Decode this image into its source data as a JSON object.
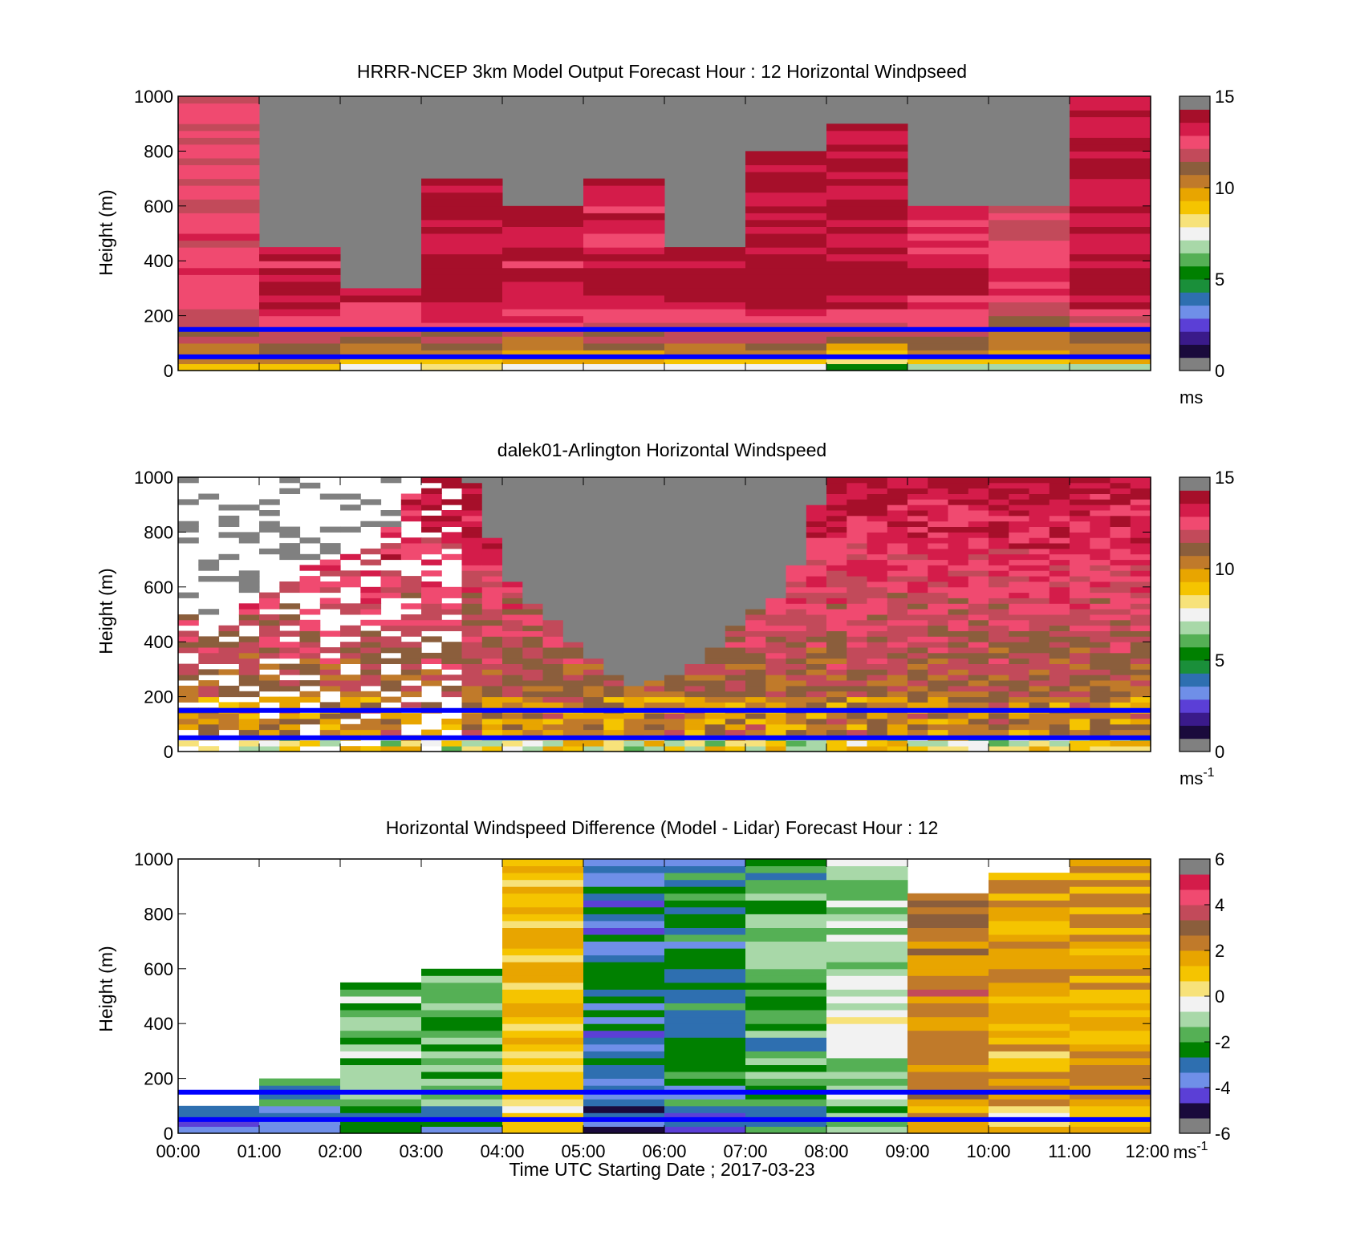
{
  "colors": {
    "missing": "#808080",
    "blank": "#ffffff",
    "boundary_lines": "#0000ff",
    "speed_scale": [
      "#808080",
      "#1a0a3c",
      "#3a1a8a",
      "#5b3fd6",
      "#6f8fe8",
      "#2e6fb0",
      "#1a8f3a",
      "#008000",
      "#55b055",
      "#a8d8a8",
      "#f2f2f2",
      "#f7e27a",
      "#f5c400",
      "#e8a500",
      "#c07a2a",
      "#8b5e3c",
      "#c24a5a",
      "#f04a70",
      "#d41c4a",
      "#a60f2a",
      "#808080"
    ],
    "diff_scale": [
      "#808080",
      "#1a0a3c",
      "#5b3fd6",
      "#6f8fe8",
      "#2e6fb0",
      "#008000",
      "#55b055",
      "#a8d8a8",
      "#f2f2f2",
      "#f7e27a",
      "#f5c400",
      "#e8a500",
      "#c07a2a",
      "#8b5e3c",
      "#c24a5a",
      "#f04a70",
      "#d41c4a",
      "#808080"
    ]
  },
  "chart_data": [
    {
      "type": "heatmap",
      "title": "HRRR-NCEP 3km Model Output   Forecast Hour : 12 Horizontal Windpseed",
      "ylabel": "Height (m)",
      "ylim": [
        0,
        1000
      ],
      "yticks": [
        "0",
        "200",
        "400",
        "600",
        "800",
        "1000"
      ],
      "xlim": [
        0,
        12
      ],
      "x_tick_labels": [],
      "colorbar": {
        "min": 0,
        "max": 15,
        "ticks": [
          "0",
          "5",
          "10",
          "15"
        ],
        "unit": "ms",
        "unit_sup": ""
      },
      "boundary_lines_m": [
        150,
        50
      ],
      "columns": [
        {
          "x0": 0,
          "x1": 1,
          "top": 1000,
          "max_speed": 13.5,
          "surface_speed": 9
        },
        {
          "x0": 1,
          "x1": 2,
          "top": 450,
          "max_speed": 14.5,
          "surface_speed": 9
        },
        {
          "x0": 2,
          "x1": 3,
          "top": 300,
          "max_speed": 14.6,
          "surface_speed": 8
        },
        {
          "x0": 3,
          "x1": 4,
          "top": 700,
          "max_speed": 15,
          "surface_speed": 7.5
        },
        {
          "x0": 4,
          "x1": 5,
          "top": 600,
          "max_speed": 14.6,
          "surface_speed": 7.3
        },
        {
          "x0": 5,
          "x1": 6,
          "top": 700,
          "max_speed": 14.6,
          "surface_speed": 7.3
        },
        {
          "x0": 6,
          "x1": 7,
          "top": 450,
          "max_speed": 14.6,
          "surface_speed": 7.3
        },
        {
          "x0": 7,
          "x1": 8,
          "top": 800,
          "max_speed": 15,
          "surface_speed": 7.3
        },
        {
          "x0": 8,
          "x1": 9,
          "top": 900,
          "max_speed": 15,
          "surface_speed": 5.5
        },
        {
          "x0": 9,
          "x1": 10,
          "top": 600,
          "max_speed": 14.4,
          "surface_speed": 7
        },
        {
          "x0": 10,
          "x1": 11,
          "top": 600,
          "max_speed": 13.5,
          "surface_speed": 7
        },
        {
          "x0": 11,
          "x1": 12,
          "top": 1000,
          "max_speed": 14.8,
          "surface_speed": 7
        }
      ]
    },
    {
      "type": "heatmap",
      "title": "dalek01-Arlington  Horizontal Windspeed",
      "ylabel": "Height (m)",
      "ylim": [
        0,
        1000
      ],
      "yticks": [
        "0",
        "200",
        "400",
        "600",
        "800",
        "1000"
      ],
      "xlim": [
        0,
        12
      ],
      "x_tick_labels": [],
      "colorbar": {
        "min": 0,
        "max": 15,
        "ticks": [
          "0",
          "5",
          "10",
          "15"
        ],
        "unit": "ms",
        "unit_sup": "-1"
      },
      "boundary_lines_m": [
        150,
        50
      ],
      "data_coverage_top_m": [
        {
          "x": 0.0,
          "top": 520
        },
        {
          "x": 0.5,
          "top": 420
        },
        {
          "x": 1.0,
          "top": 580
        },
        {
          "x": 1.5,
          "top": 650
        },
        {
          "x": 2.0,
          "top": 700
        },
        {
          "x": 2.5,
          "top": 750
        },
        {
          "x": 3.0,
          "top": 980
        },
        {
          "x": 3.6,
          "top": 1000
        },
        {
          "x": 4.0,
          "top": 660
        },
        {
          "x": 4.5,
          "top": 500
        },
        {
          "x": 5.0,
          "top": 350
        },
        {
          "x": 5.6,
          "top": 220
        },
        {
          "x": 6.0,
          "top": 260
        },
        {
          "x": 6.5,
          "top": 320
        },
        {
          "x": 7.0,
          "top": 500
        },
        {
          "x": 7.5,
          "top": 560
        },
        {
          "x": 8.0,
          "top": 1000
        },
        {
          "x": 9.0,
          "top": 1000
        },
        {
          "x": 12.0,
          "top": 1000
        }
      ]
    },
    {
      "type": "heatmap",
      "title": "Horizontal Windspeed Difference (Model - Lidar) Forecast Hour : 12",
      "xlabel": "Time UTC  Starting Date ; 2017-03-23",
      "ylabel": "Height (m)",
      "ylim": [
        0,
        1000
      ],
      "yticks": [
        "0",
        "200",
        "400",
        "600",
        "800",
        "1000"
      ],
      "xlim": [
        0,
        12
      ],
      "x_tick_labels": [
        "00:00",
        "01:00",
        "02:00",
        "03:00",
        "04:00",
        "05:00",
        "06:00",
        "07:00",
        "08:00",
        "09:00",
        "10:00",
        "11:00",
        "12:00"
      ],
      "colorbar": {
        "min": -6,
        "max": 6,
        "ticks": [
          "-6",
          "-4",
          "-2",
          "0",
          "2",
          "4",
          "6"
        ],
        "unit": "ms",
        "unit_sup": "-1"
      },
      "boundary_lines_m": [
        150,
        50
      ],
      "columns": [
        {
          "x0": 0,
          "x1": 1,
          "top": 100,
          "mean_diff": -2.8
        },
        {
          "x0": 1,
          "x1": 2,
          "top": 200,
          "mean_diff": -2.6
        },
        {
          "x0": 2,
          "x1": 3,
          "top": 550,
          "mean_diff": -1.6
        },
        {
          "x0": 3,
          "x1": 4,
          "top": 580,
          "mean_diff": -1.9
        },
        {
          "x0": 4,
          "x1": 5,
          "top": 1000,
          "mean_diff": 1.2
        },
        {
          "x0": 5,
          "x1": 6,
          "top": 1000,
          "mean_diff": -3.5
        },
        {
          "x0": 6,
          "x1": 7,
          "top": 1000,
          "mean_diff": -2.9
        },
        {
          "x0": 7,
          "x1": 8,
          "top": 1000,
          "mean_diff": -2.2
        },
        {
          "x0": 8,
          "x1": 9,
          "top": 1000,
          "mean_diff": -1.0
        },
        {
          "x0": 9,
          "x1": 10,
          "top": 870,
          "mean_diff": 2.8
        },
        {
          "x0": 10,
          "x1": 11,
          "top": 930,
          "mean_diff": 1.8
        },
        {
          "x0": 11,
          "x1": 12,
          "top": 1000,
          "mean_diff": 1.9
        }
      ]
    }
  ]
}
